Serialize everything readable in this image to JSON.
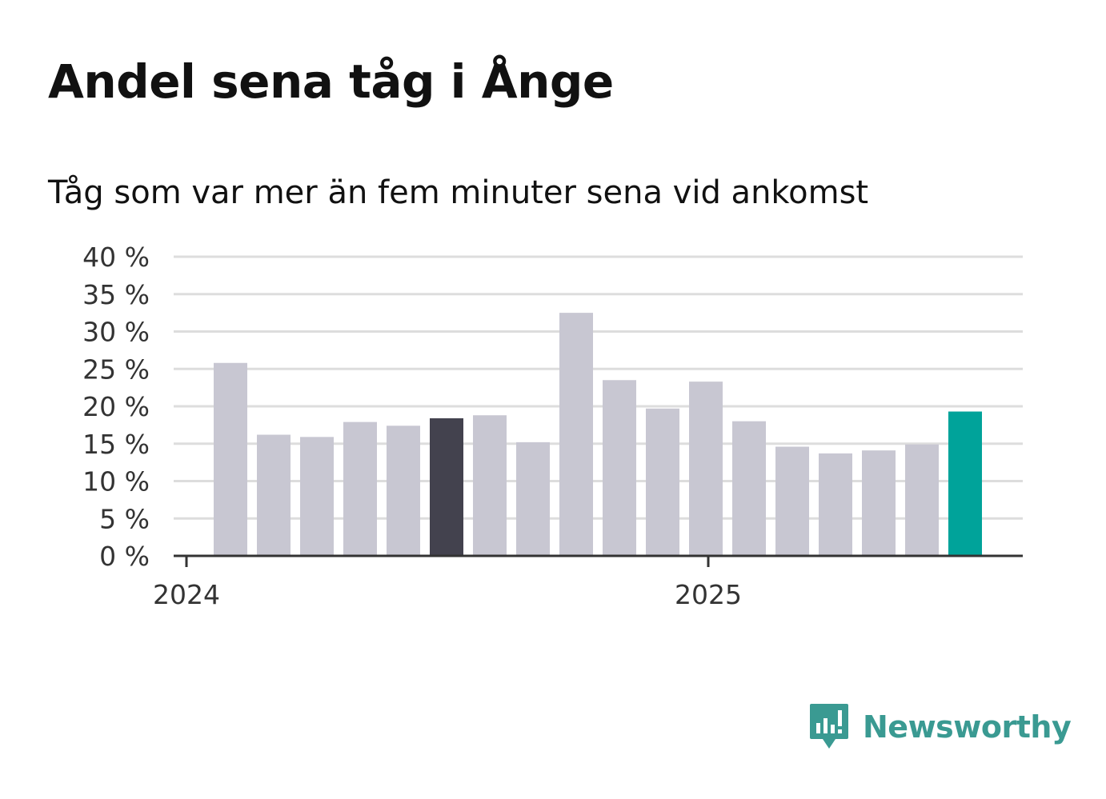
{
  "title": "Andel sena tåg i Ånge",
  "subtitle": "Tåg som var mer än fem minuter sena vid ankomst",
  "brand": {
    "name": "Newsworthy",
    "icon": "newsworthy-logo-icon",
    "color": "#3a9a92"
  },
  "colors": {
    "bar": "#c8c7d2",
    "highlight": "#43424e",
    "latest": "#00a39a",
    "grid": "#dddddd",
    "axis": "#333333",
    "text": "#333333"
  },
  "chart_data": {
    "type": "bar",
    "ylim": [
      0,
      40
    ],
    "y_ticks": [
      0,
      5,
      10,
      15,
      20,
      25,
      30,
      35,
      40
    ],
    "y_tick_labels": [
      "0 %",
      "5 %",
      "10 %",
      "15 %",
      "20 %",
      "25 %",
      "30 %",
      "35 %",
      "40 %"
    ],
    "x_tick_labels": [
      "2024",
      "2025"
    ],
    "grid": true,
    "bars": [
      {
        "value": 25.8,
        "style": "normal"
      },
      {
        "value": 16.2,
        "style": "normal"
      },
      {
        "value": 15.9,
        "style": "normal"
      },
      {
        "value": 17.9,
        "style": "normal"
      },
      {
        "value": 17.4,
        "style": "normal"
      },
      {
        "value": 18.4,
        "style": "highlight"
      },
      {
        "value": 18.8,
        "style": "normal"
      },
      {
        "value": 15.2,
        "style": "normal"
      },
      {
        "value": 32.5,
        "style": "normal"
      },
      {
        "value": 23.5,
        "style": "normal"
      },
      {
        "value": 19.7,
        "style": "normal"
      },
      {
        "value": 23.3,
        "style": "normal"
      },
      {
        "value": 18.0,
        "style": "normal"
      },
      {
        "value": 14.6,
        "style": "normal"
      },
      {
        "value": 13.7,
        "style": "normal"
      },
      {
        "value": 14.1,
        "style": "normal"
      },
      {
        "value": 14.9,
        "style": "normal"
      },
      {
        "value": 19.3,
        "style": "latest"
      }
    ]
  }
}
